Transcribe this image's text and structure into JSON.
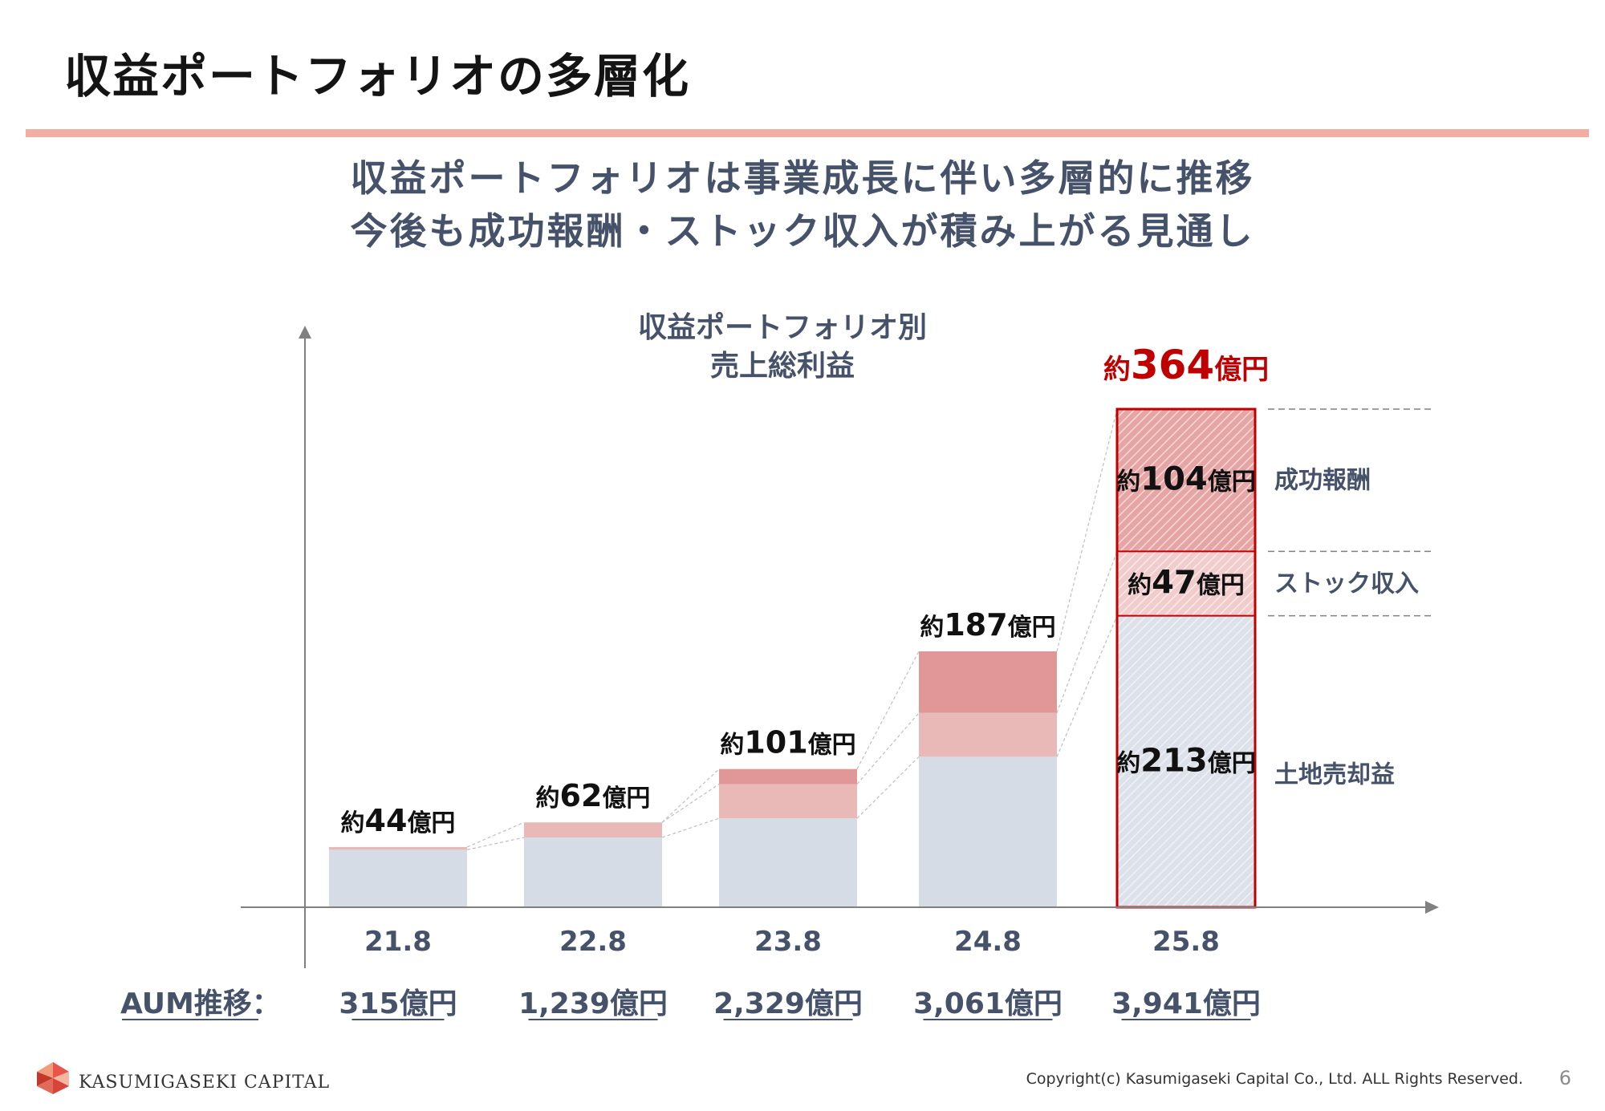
{
  "page": {
    "title": "収益ポートフォリオの多層化",
    "headline_line1": "収益ポートフォリオは事業成長に伴い多層的に推移",
    "headline_line2": "今後も成功報酬・ストック収入が積み上がる見通し",
    "copyright": "Copyright(c) Kasumigaseki Capital Co., Ltd. ALL Rights Reserved.",
    "page_number": "6",
    "logo_text": "KASUMIGASEKI CAPITAL"
  },
  "colors": {
    "land": "#d6dce5",
    "stock": "#e9b9b8",
    "success": "#e19797",
    "highlight": "#c00000",
    "text_slate": "#46526a",
    "accent_rule": "#f2aea3"
  },
  "chart_data": {
    "type": "bar",
    "stacked": true,
    "title_line1": "収益ポートフォリオ別",
    "title_line2": "売上総利益",
    "categories": [
      "21.8",
      "22.8",
      "23.8",
      "24.8",
      "25.8"
    ],
    "series": [
      {
        "name": "土地売却益",
        "color": "#d6dce5",
        "values": [
          42,
          51,
          65,
          110,
          213
        ]
      },
      {
        "name": "ストック収入",
        "color": "#e9b9b8",
        "values": [
          2,
          11,
          25,
          32,
          47
        ]
      },
      {
        "name": "成功報酬",
        "color": "#e19797",
        "values": [
          0,
          0,
          11,
          45,
          104
        ]
      }
    ],
    "totals": [
      44,
      62,
      101,
      187,
      364
    ],
    "total_labels": [
      "約44億円",
      "約62億円",
      "約101億円",
      "約187億円",
      "約364億円"
    ],
    "segment_labels_last": {
      "success": "約104億円",
      "stock": "約47億円",
      "land": "約213億円"
    },
    "highlight_index": 4,
    "ylim": [
      0,
      364
    ],
    "aum_label": "AUM推移：",
    "aum_values": [
      "315億円",
      "1,239億円",
      "2,329億円",
      "3,061億円",
      "3,941億円"
    ]
  }
}
